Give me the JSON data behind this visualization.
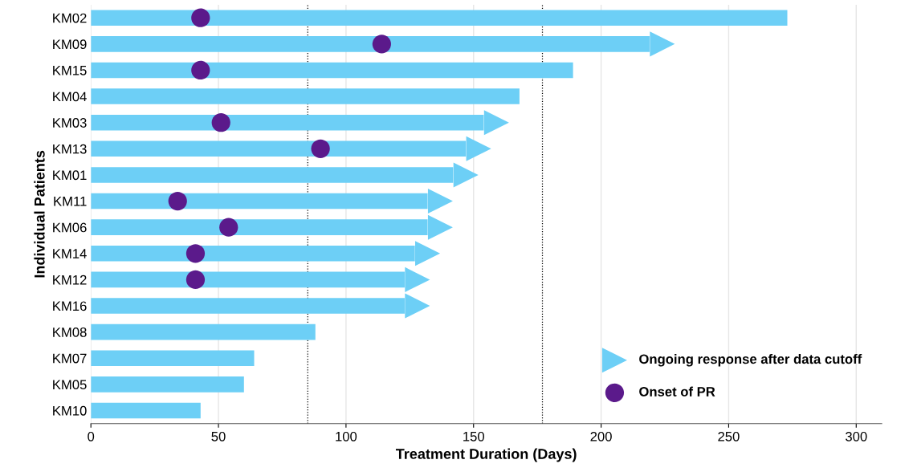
{
  "chart_data": {
    "type": "bar",
    "orientation": "horizontal",
    "xlabel": "Treatment Duration (Days)",
    "ylabel": "Individual Patients",
    "categories": [
      "KM02",
      "KM09",
      "KM15",
      "KM04",
      "KM03",
      "KM13",
      "KM01",
      "KM11",
      "KM06",
      "KM14",
      "KM12",
      "KM16",
      "KM08",
      "KM07",
      "KM05",
      "KM10"
    ],
    "xlim": [
      0,
      310
    ],
    "xticks": [
      0,
      50,
      100,
      150,
      200,
      250,
      300
    ],
    "grid": "x",
    "legend": "bottom right",
    "series": [
      {
        "color": "#6dcff6",
        "values": [
          273,
          219,
          189,
          168,
          154,
          147,
          142,
          132,
          132,
          127,
          123,
          123,
          88,
          64,
          60,
          43
        ]
      },
      {
        "type": "scatter",
        "name": "Ongoing response after data cutoff",
        "marker": "triangle",
        "color": "#6dcff6",
        "values": [
          null,
          224,
          null,
          null,
          159,
          152,
          147,
          137,
          137,
          132,
          128,
          128,
          null,
          null,
          null,
          null
        ]
      },
      {
        "type": "scatter",
        "name": "Onset of PR",
        "marker": "circle",
        "color": "#5b1a8b",
        "values": [
          43,
          114,
          43,
          null,
          51,
          90,
          null,
          34,
          54,
          41,
          41,
          null,
          null,
          null,
          null,
          null
        ]
      }
    ],
    "ref_lines": [
      {
        "axis": "x",
        "value": 85,
        "color": "#000000",
        "line_style": "dotted"
      },
      {
        "axis": "x",
        "value": 177,
        "color": "#000000",
        "line_style": "dotted"
      }
    ]
  }
}
